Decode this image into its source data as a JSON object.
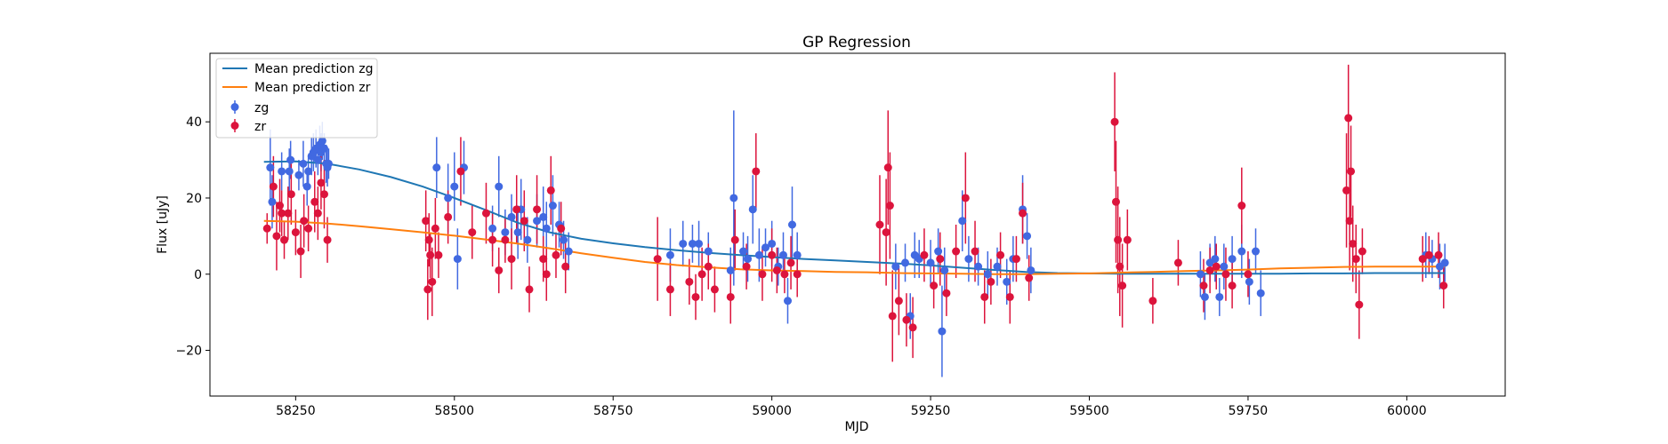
{
  "chart_data": {
    "type": "scatter",
    "title": "GP Regression",
    "xlabel": "MJD",
    "ylabel": "Flux [uJy]",
    "xlim": [
      58115,
      60155
    ],
    "ylim": [
      -32,
      58
    ],
    "xticks": [
      58250,
      58500,
      58750,
      59000,
      59250,
      59500,
      59750,
      60000
    ],
    "yticks": [
      -20,
      0,
      20,
      40
    ],
    "grid": false,
    "legend_position": "top-left",
    "lines": [
      {
        "name": "Mean prediction zg",
        "color": "#1f77b4",
        "x": [
          58200,
          58250,
          58300,
          58350,
          58400,
          58450,
          58500,
          58550,
          58600,
          58650,
          58700,
          58750,
          58800,
          58850,
          58900,
          58950,
          59000,
          59050,
          59100,
          59150,
          59200,
          59250,
          59300,
          59350,
          59400,
          59450,
          59500,
          59550,
          59600,
          59650,
          59700,
          59750,
          59800,
          59850,
          59900,
          59950,
          60000,
          60060
        ],
        "y": [
          29.5,
          29.6,
          29.0,
          27.5,
          25.5,
          23.0,
          20.0,
          16.8,
          13.5,
          11.0,
          9.3,
          8.1,
          7.1,
          6.3,
          5.6,
          5.0,
          4.5,
          4.0,
          3.6,
          3.2,
          2.8,
          2.3,
          1.7,
          1.1,
          0.6,
          0.3,
          0.2,
          0.1,
          0.1,
          0.1,
          0.1,
          0.1,
          0.1,
          0.2,
          0.2,
          0.3,
          0.3,
          0.3
        ]
      },
      {
        "name": "Mean prediction zr",
        "color": "#ff7f0e",
        "x": [
          58200,
          58250,
          58300,
          58350,
          58400,
          58450,
          58500,
          58550,
          58600,
          58650,
          58700,
          58750,
          58800,
          58850,
          58900,
          58950,
          59000,
          59050,
          59100,
          59150,
          59200,
          59250,
          59300,
          59350,
          59400,
          59450,
          59500,
          59550,
          59600,
          59650,
          59700,
          59750,
          59800,
          59850,
          59900,
          59950,
          60000,
          60060
        ],
        "y": [
          14.0,
          13.8,
          13.3,
          12.6,
          11.8,
          11.0,
          10.1,
          9.1,
          8.0,
          6.8,
          5.5,
          4.3,
          3.2,
          2.4,
          1.8,
          1.3,
          1.0,
          0.8,
          0.6,
          0.5,
          0.3,
          0.2,
          0.1,
          0.0,
          0.0,
          0.1,
          0.2,
          0.4,
          0.6,
          0.8,
          1.0,
          1.2,
          1.5,
          1.7,
          1.9,
          2.0,
          2.0,
          2.0
        ]
      }
    ],
    "series": [
      {
        "name": "zg",
        "color": "#4169e1",
        "points": [
          [
            58210,
            28,
            10
          ],
          [
            58213,
            19,
            7
          ],
          [
            58228,
            27,
            5
          ],
          [
            58240,
            27,
            6
          ],
          [
            58242,
            30,
            5
          ],
          [
            58255,
            26,
            4
          ],
          [
            58262,
            29,
            6
          ],
          [
            58268,
            23,
            5
          ],
          [
            58270,
            27,
            4
          ],
          [
            58275,
            31,
            5
          ],
          [
            58278,
            32,
            5
          ],
          [
            58282,
            33,
            5
          ],
          [
            58285,
            30,
            4
          ],
          [
            58288,
            34,
            5
          ],
          [
            58290,
            32,
            5
          ],
          [
            58292,
            35,
            5
          ],
          [
            58295,
            33,
            4
          ],
          [
            58298,
            29,
            5
          ],
          [
            58300,
            28,
            5
          ],
          [
            58302,
            29,
            4
          ],
          [
            58472,
            28,
            8
          ],
          [
            58490,
            20,
            9
          ],
          [
            58500,
            23,
            9
          ],
          [
            58505,
            4,
            8
          ],
          [
            58515,
            28,
            7
          ],
          [
            58560,
            12,
            6
          ],
          [
            58570,
            23,
            8
          ],
          [
            58580,
            11,
            6
          ],
          [
            58590,
            15,
            6
          ],
          [
            58600,
            11,
            7
          ],
          [
            58605,
            17,
            8
          ],
          [
            58615,
            9,
            6
          ],
          [
            58630,
            14,
            7
          ],
          [
            58640,
            15,
            8
          ],
          [
            58645,
            12,
            7
          ],
          [
            58655,
            18,
            8
          ],
          [
            58665,
            13,
            6
          ],
          [
            58672,
            9,
            5
          ],
          [
            58680,
            6,
            5
          ],
          [
            58840,
            5,
            7
          ],
          [
            58860,
            8,
            6
          ],
          [
            58875,
            8,
            5
          ],
          [
            58885,
            8,
            6
          ],
          [
            58900,
            6,
            5
          ],
          [
            58935,
            1,
            6
          ],
          [
            58940,
            20,
            23
          ],
          [
            58955,
            6,
            5
          ],
          [
            58962,
            4,
            6
          ],
          [
            58970,
            17,
            9
          ],
          [
            58980,
            5,
            7
          ],
          [
            58990,
            7,
            5
          ],
          [
            59000,
            8,
            6
          ],
          [
            59010,
            2,
            5
          ],
          [
            59018,
            5,
            6
          ],
          [
            59025,
            -7,
            6
          ],
          [
            59032,
            13,
            10
          ],
          [
            59040,
            5,
            6
          ],
          [
            59195,
            2,
            6
          ],
          [
            59210,
            3,
            5
          ],
          [
            59218,
            -11,
            6
          ],
          [
            59225,
            5,
            6
          ],
          [
            59232,
            4,
            5
          ],
          [
            59250,
            3,
            6
          ],
          [
            59262,
            6,
            6
          ],
          [
            59268,
            -15,
            12
          ],
          [
            59272,
            1,
            6
          ],
          [
            59300,
            14,
            8
          ],
          [
            59310,
            4,
            6
          ],
          [
            59325,
            2,
            5
          ],
          [
            59340,
            0,
            6
          ],
          [
            59355,
            2,
            5
          ],
          [
            59370,
            -2,
            6
          ],
          [
            59380,
            4,
            6
          ],
          [
            59395,
            17,
            9
          ],
          [
            59402,
            10,
            6
          ],
          [
            59408,
            1,
            6
          ],
          [
            59675,
            0,
            6
          ],
          [
            59682,
            -6,
            6
          ],
          [
            59690,
            3,
            5
          ],
          [
            59698,
            4,
            6
          ],
          [
            59705,
            -6,
            5
          ],
          [
            59712,
            2,
            6
          ],
          [
            59725,
            4,
            6
          ],
          [
            59740,
            6,
            7
          ],
          [
            59752,
            -2,
            6
          ],
          [
            59762,
            6,
            6
          ],
          [
            59770,
            -5,
            6
          ],
          [
            60030,
            5,
            6
          ],
          [
            60040,
            4,
            5
          ],
          [
            60052,
            2,
            6
          ],
          [
            60060,
            3,
            5
          ]
        ]
      },
      {
        "name": "zr",
        "color": "#dc143c",
        "points": [
          [
            58205,
            12,
            4
          ],
          [
            58215,
            23,
            8
          ],
          [
            58220,
            10,
            9
          ],
          [
            58225,
            18,
            7
          ],
          [
            58228,
            16,
            6
          ],
          [
            58232,
            9,
            5
          ],
          [
            58238,
            16,
            7
          ],
          [
            58243,
            21,
            8
          ],
          [
            58250,
            11,
            6
          ],
          [
            58258,
            6,
            7
          ],
          [
            58263,
            14,
            7
          ],
          [
            58270,
            12,
            6
          ],
          [
            58280,
            19,
            8
          ],
          [
            58285,
            16,
            7
          ],
          [
            58290,
            24,
            7
          ],
          [
            58295,
            21,
            9
          ],
          [
            58300,
            9,
            6
          ],
          [
            58455,
            14,
            8
          ],
          [
            58458,
            -4,
            8
          ],
          [
            58460,
            9,
            7
          ],
          [
            58462,
            5,
            6
          ],
          [
            58465,
            -2,
            9
          ],
          [
            58470,
            12,
            8
          ],
          [
            58475,
            5,
            6
          ],
          [
            58490,
            15,
            7
          ],
          [
            58510,
            27,
            9
          ],
          [
            58528,
            11,
            7
          ],
          [
            58550,
            16,
            8
          ],
          [
            58560,
            9,
            7
          ],
          [
            58570,
            1,
            6
          ],
          [
            58580,
            9,
            6
          ],
          [
            58590,
            4,
            8
          ],
          [
            58598,
            17,
            9
          ],
          [
            58610,
            14,
            8
          ],
          [
            58618,
            -4,
            6
          ],
          [
            58630,
            17,
            9
          ],
          [
            58640,
            4,
            6
          ],
          [
            58645,
            0,
            7
          ],
          [
            58652,
            22,
            9
          ],
          [
            58660,
            5,
            6
          ],
          [
            58668,
            12,
            7
          ],
          [
            58675,
            2,
            7
          ],
          [
            58820,
            4,
            11
          ],
          [
            58840,
            -4,
            7
          ],
          [
            58870,
            -2,
            6
          ],
          [
            58880,
            -6,
            6
          ],
          [
            58890,
            0,
            7
          ],
          [
            58900,
            2,
            6
          ],
          [
            58910,
            -4,
            6
          ],
          [
            58935,
            -6,
            7
          ],
          [
            58942,
            9,
            8
          ],
          [
            58960,
            2,
            6
          ],
          [
            58975,
            27,
            10
          ],
          [
            58985,
            0,
            7
          ],
          [
            59000,
            5,
            7
          ],
          [
            59008,
            1,
            6
          ],
          [
            59020,
            0,
            5
          ],
          [
            59030,
            3,
            7
          ],
          [
            59040,
            0,
            6
          ],
          [
            59170,
            13,
            13
          ],
          [
            59180,
            11,
            14
          ],
          [
            59183,
            28,
            15
          ],
          [
            59186,
            18,
            14
          ],
          [
            59190,
            -11,
            12
          ],
          [
            59200,
            -7,
            9
          ],
          [
            59212,
            -12,
            7
          ],
          [
            59222,
            -14,
            8
          ],
          [
            59240,
            5,
            7
          ],
          [
            59255,
            -3,
            6
          ],
          [
            59265,
            4,
            7
          ],
          [
            59275,
            -5,
            6
          ],
          [
            59290,
            6,
            7
          ],
          [
            59305,
            20,
            12
          ],
          [
            59320,
            6,
            8
          ],
          [
            59335,
            -6,
            7
          ],
          [
            59345,
            -2,
            6
          ],
          [
            59360,
            5,
            6
          ],
          [
            59375,
            -6,
            7
          ],
          [
            59385,
            4,
            6
          ],
          [
            59395,
            16,
            8
          ],
          [
            59405,
            -1,
            6
          ],
          [
            59540,
            40,
            13
          ],
          [
            59542,
            19,
            16
          ],
          [
            59545,
            9,
            14
          ],
          [
            59548,
            2,
            13
          ],
          [
            59552,
            -3,
            11
          ],
          [
            59560,
            9,
            8
          ],
          [
            59600,
            -7,
            6
          ],
          [
            59640,
            3,
            6
          ],
          [
            59680,
            -3,
            7
          ],
          [
            59690,
            1,
            6
          ],
          [
            59700,
            2,
            6
          ],
          [
            59715,
            0,
            7
          ],
          [
            59725,
            -3,
            6
          ],
          [
            59740,
            18,
            10
          ],
          [
            59750,
            0,
            6
          ],
          [
            59905,
            22,
            15
          ],
          [
            59908,
            41,
            14
          ],
          [
            59910,
            14,
            13
          ],
          [
            59912,
            27,
            12
          ],
          [
            59915,
            8,
            10
          ],
          [
            59920,
            4,
            9
          ],
          [
            59925,
            -8,
            9
          ],
          [
            59930,
            6,
            6
          ],
          [
            60025,
            4,
            6
          ],
          [
            60035,
            5,
            5
          ],
          [
            60050,
            5,
            6
          ],
          [
            60058,
            -3,
            6
          ]
        ]
      }
    ]
  }
}
